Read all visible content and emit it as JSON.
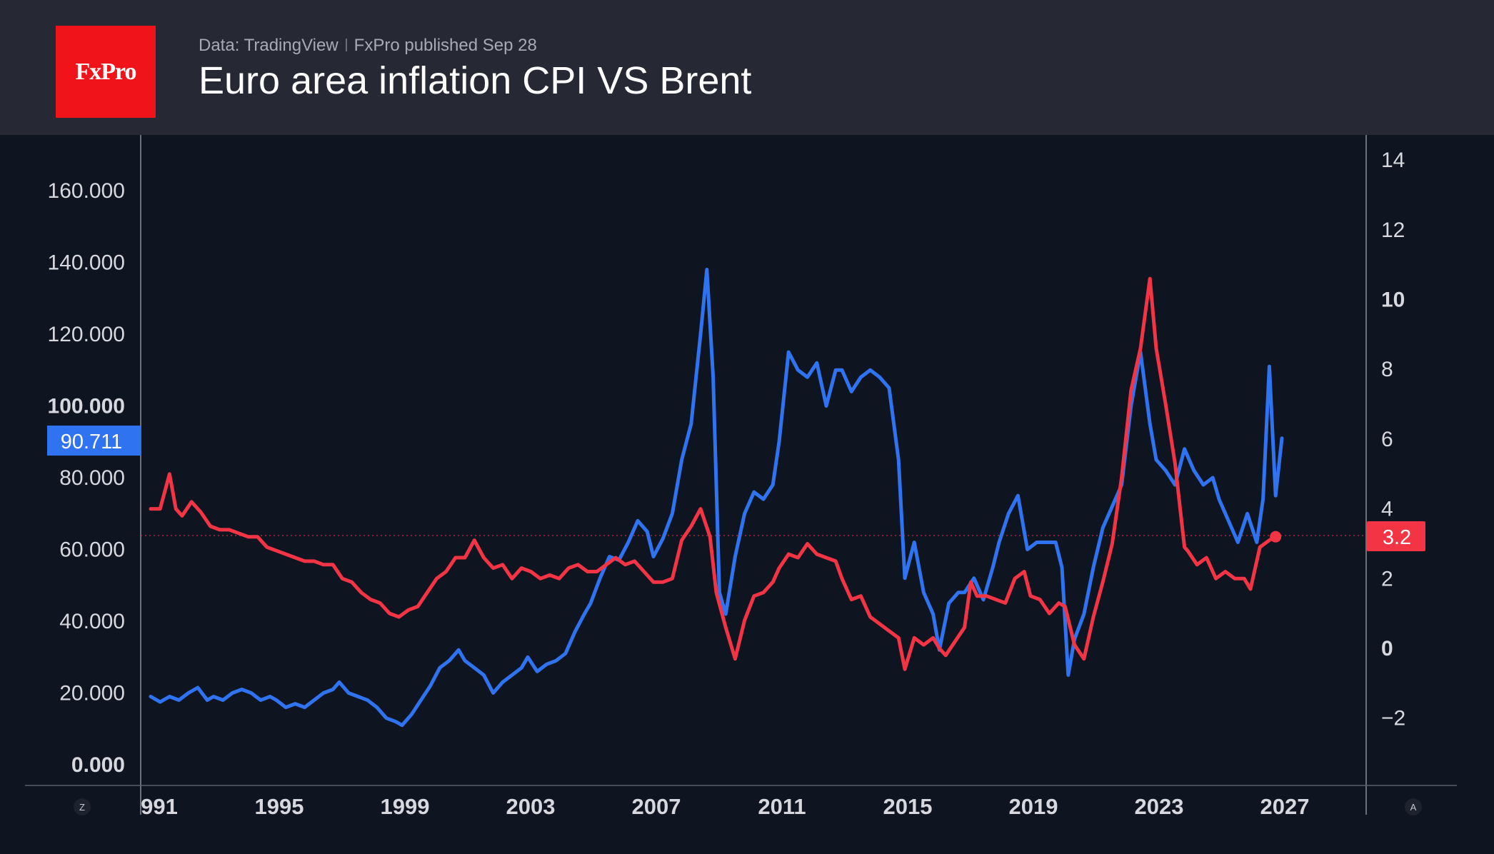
{
  "header": {
    "logo_text": "FxPro",
    "source": "Data: TradingView",
    "published": "FxPro published Sep 28",
    "title": "Euro area inflation CPI VS Brent"
  },
  "corner_buttons": {
    "left": "Z",
    "right": "A"
  },
  "colors": {
    "brent": "#2f73f0",
    "cpi": "#f23445",
    "background": "#0e1420",
    "header": "#262833",
    "logo": "#f0141a"
  },
  "chart_data": {
    "type": "line",
    "title": "Euro area inflation CPI VS Brent",
    "x_ticks": [
      "991",
      "1995",
      "1999",
      "2003",
      "2007",
      "2011",
      "2015",
      "2019",
      "2023",
      "2027"
    ],
    "left_axis": {
      "ticks": [
        "160.000",
        "140.000",
        "120.000",
        "100.000",
        "80.000",
        "60.000",
        "40.000",
        "20.000",
        "0.000"
      ],
      "range": [
        0,
        175
      ]
    },
    "right_axis": {
      "ticks": [
        "14",
        "12",
        "10",
        "8",
        "6",
        "4",
        "2",
        "0",
        "−2"
      ],
      "range": [
        -4.3,
        14.5
      ]
    },
    "series": [
      {
        "axis": "left",
        "last_value_label": "90.711",
        "points": [
          [
            1991.0,
            19
          ],
          [
            1991.3,
            17.5
          ],
          [
            1991.6,
            19
          ],
          [
            1991.9,
            18
          ],
          [
            1992.2,
            20
          ],
          [
            1992.5,
            21.5
          ],
          [
            1992.8,
            18
          ],
          [
            1993.0,
            19
          ],
          [
            1993.3,
            18
          ],
          [
            1993.6,
            20
          ],
          [
            1993.9,
            21
          ],
          [
            1994.2,
            20
          ],
          [
            1994.5,
            18
          ],
          [
            1994.8,
            19
          ],
          [
            1995.0,
            18
          ],
          [
            1995.3,
            16
          ],
          [
            1995.6,
            17
          ],
          [
            1995.9,
            16
          ],
          [
            1996.2,
            18
          ],
          [
            1996.5,
            20
          ],
          [
            1996.8,
            21
          ],
          [
            1997.0,
            23
          ],
          [
            1997.3,
            20
          ],
          [
            1997.6,
            19
          ],
          [
            1997.9,
            18
          ],
          [
            1998.2,
            16
          ],
          [
            1998.5,
            13
          ],
          [
            1998.8,
            12
          ],
          [
            1999.0,
            11
          ],
          [
            1999.3,
            14
          ],
          [
            1999.6,
            18
          ],
          [
            1999.9,
            22
          ],
          [
            2000.2,
            27
          ],
          [
            2000.5,
            29
          ],
          [
            2000.8,
            32
          ],
          [
            2001.0,
            29
          ],
          [
            2001.3,
            27
          ],
          [
            2001.6,
            25
          ],
          [
            2001.9,
            20
          ],
          [
            2002.2,
            23
          ],
          [
            2002.5,
            25
          ],
          [
            2002.8,
            27
          ],
          [
            2003.0,
            30
          ],
          [
            2003.3,
            26
          ],
          [
            2003.6,
            28
          ],
          [
            2003.9,
            29
          ],
          [
            2004.2,
            31
          ],
          [
            2004.5,
            37
          ],
          [
            2004.8,
            42
          ],
          [
            2005.0,
            45
          ],
          [
            2005.3,
            52
          ],
          [
            2005.6,
            58
          ],
          [
            2005.9,
            57
          ],
          [
            2006.2,
            62
          ],
          [
            2006.5,
            68
          ],
          [
            2006.8,
            65
          ],
          [
            2007.0,
            58
          ],
          [
            2007.3,
            63
          ],
          [
            2007.6,
            70
          ],
          [
            2007.9,
            85
          ],
          [
            2008.2,
            95
          ],
          [
            2008.5,
            120
          ],
          [
            2008.7,
            138
          ],
          [
            2008.9,
            108
          ],
          [
            2009.1,
            48
          ],
          [
            2009.3,
            42
          ],
          [
            2009.6,
            58
          ],
          [
            2009.9,
            70
          ],
          [
            2010.2,
            76
          ],
          [
            2010.5,
            74
          ],
          [
            2010.8,
            78
          ],
          [
            2011.0,
            90
          ],
          [
            2011.3,
            115
          ],
          [
            2011.6,
            110
          ],
          [
            2011.9,
            108
          ],
          [
            2012.2,
            112
          ],
          [
            2012.5,
            100
          ],
          [
            2012.8,
            110
          ],
          [
            2013.0,
            110
          ],
          [
            2013.3,
            104
          ],
          [
            2013.6,
            108
          ],
          [
            2013.9,
            110
          ],
          [
            2014.2,
            108
          ],
          [
            2014.5,
            105
          ],
          [
            2014.8,
            85
          ],
          [
            2015.0,
            52
          ],
          [
            2015.3,
            62
          ],
          [
            2015.6,
            48
          ],
          [
            2015.9,
            42
          ],
          [
            2016.1,
            32
          ],
          [
            2016.4,
            45
          ],
          [
            2016.7,
            48
          ],
          [
            2016.9,
            48
          ],
          [
            2017.2,
            52
          ],
          [
            2017.5,
            46
          ],
          [
            2017.8,
            55
          ],
          [
            2018.0,
            62
          ],
          [
            2018.3,
            70
          ],
          [
            2018.6,
            75
          ],
          [
            2018.9,
            60
          ],
          [
            2019.2,
            62
          ],
          [
            2019.5,
            62
          ],
          [
            2019.8,
            62
          ],
          [
            2020.0,
            55
          ],
          [
            2020.2,
            25
          ],
          [
            2020.4,
            35
          ],
          [
            2020.7,
            42
          ],
          [
            2021.0,
            55
          ],
          [
            2021.3,
            66
          ],
          [
            2021.6,
            72
          ],
          [
            2021.9,
            78
          ],
          [
            2022.2,
            100
          ],
          [
            2022.5,
            115
          ],
          [
            2022.8,
            95
          ],
          [
            2023.0,
            85
          ],
          [
            2023.3,
            82
          ],
          [
            2023.6,
            78
          ],
          [
            2023.9,
            88
          ],
          [
            2024.2,
            82
          ],
          [
            2024.5,
            78
          ],
          [
            2024.8,
            80
          ],
          [
            2025.0,
            74
          ],
          [
            2025.3,
            68
          ],
          [
            2025.6,
            62
          ],
          [
            2025.9,
            70
          ],
          [
            2026.2,
            62
          ],
          [
            2026.4,
            74
          ],
          [
            2026.6,
            111
          ],
          [
            2026.8,
            75
          ],
          [
            2027.0,
            91
          ]
        ]
      },
      {
        "axis": "right",
        "last_value_label": "3.2",
        "points": [
          [
            1991.0,
            4.0
          ],
          [
            1991.3,
            4.0
          ],
          [
            1991.6,
            5.0
          ],
          [
            1991.8,
            4.0
          ],
          [
            1992.0,
            3.8
          ],
          [
            1992.3,
            4.2
          ],
          [
            1992.6,
            3.9
          ],
          [
            1992.9,
            3.5
          ],
          [
            1993.2,
            3.4
          ],
          [
            1993.5,
            3.4
          ],
          [
            1993.8,
            3.3
          ],
          [
            1994.1,
            3.2
          ],
          [
            1994.4,
            3.2
          ],
          [
            1994.7,
            2.9
          ],
          [
            1995.0,
            2.8
          ],
          [
            1995.3,
            2.7
          ],
          [
            1995.6,
            2.6
          ],
          [
            1995.9,
            2.5
          ],
          [
            1996.2,
            2.5
          ],
          [
            1996.5,
            2.4
          ],
          [
            1996.8,
            2.4
          ],
          [
            1997.1,
            2.0
          ],
          [
            1997.4,
            1.9
          ],
          [
            1997.7,
            1.6
          ],
          [
            1998.0,
            1.4
          ],
          [
            1998.3,
            1.3
          ],
          [
            1998.6,
            1.0
          ],
          [
            1998.9,
            0.9
          ],
          [
            1999.2,
            1.1
          ],
          [
            1999.5,
            1.2
          ],
          [
            1999.8,
            1.6
          ],
          [
            2000.1,
            2.0
          ],
          [
            2000.4,
            2.2
          ],
          [
            2000.7,
            2.6
          ],
          [
            2001.0,
            2.6
          ],
          [
            2001.3,
            3.1
          ],
          [
            2001.6,
            2.6
          ],
          [
            2001.9,
            2.3
          ],
          [
            2002.2,
            2.4
          ],
          [
            2002.5,
            2.0
          ],
          [
            2002.8,
            2.3
          ],
          [
            2003.1,
            2.2
          ],
          [
            2003.4,
            2.0
          ],
          [
            2003.7,
            2.1
          ],
          [
            2004.0,
            2.0
          ],
          [
            2004.3,
            2.3
          ],
          [
            2004.6,
            2.4
          ],
          [
            2004.9,
            2.2
          ],
          [
            2005.2,
            2.2
          ],
          [
            2005.5,
            2.4
          ],
          [
            2005.8,
            2.6
          ],
          [
            2006.1,
            2.4
          ],
          [
            2006.4,
            2.5
          ],
          [
            2006.7,
            2.2
          ],
          [
            2007.0,
            1.9
          ],
          [
            2007.3,
            1.9
          ],
          [
            2007.6,
            2.0
          ],
          [
            2007.9,
            3.1
          ],
          [
            2008.2,
            3.5
          ],
          [
            2008.5,
            4.0
          ],
          [
            2008.8,
            3.2
          ],
          [
            2009.0,
            1.6
          ],
          [
            2009.3,
            0.6
          ],
          [
            2009.6,
            -0.3
          ],
          [
            2009.9,
            0.8
          ],
          [
            2010.2,
            1.5
          ],
          [
            2010.5,
            1.6
          ],
          [
            2010.8,
            1.9
          ],
          [
            2011.0,
            2.3
          ],
          [
            2011.3,
            2.7
          ],
          [
            2011.6,
            2.6
          ],
          [
            2011.9,
            3.0
          ],
          [
            2012.2,
            2.7
          ],
          [
            2012.5,
            2.6
          ],
          [
            2012.8,
            2.5
          ],
          [
            2013.0,
            2.0
          ],
          [
            2013.3,
            1.4
          ],
          [
            2013.6,
            1.5
          ],
          [
            2013.9,
            0.9
          ],
          [
            2014.2,
            0.7
          ],
          [
            2014.5,
            0.5
          ],
          [
            2014.8,
            0.3
          ],
          [
            2015.0,
            -0.6
          ],
          [
            2015.3,
            0.3
          ],
          [
            2015.6,
            0.1
          ],
          [
            2015.9,
            0.3
          ],
          [
            2016.1,
            0.0
          ],
          [
            2016.3,
            -0.2
          ],
          [
            2016.6,
            0.2
          ],
          [
            2016.9,
            0.6
          ],
          [
            2017.1,
            1.9
          ],
          [
            2017.3,
            1.5
          ],
          [
            2017.6,
            1.5
          ],
          [
            2017.9,
            1.4
          ],
          [
            2018.2,
            1.3
          ],
          [
            2018.5,
            2.0
          ],
          [
            2018.8,
            2.2
          ],
          [
            2019.0,
            1.5
          ],
          [
            2019.3,
            1.4
          ],
          [
            2019.6,
            1.0
          ],
          [
            2019.9,
            1.3
          ],
          [
            2020.1,
            1.2
          ],
          [
            2020.4,
            0.1
          ],
          [
            2020.7,
            -0.3
          ],
          [
            2021.0,
            0.9
          ],
          [
            2021.3,
            1.9
          ],
          [
            2021.6,
            3.0
          ],
          [
            2021.9,
            4.9
          ],
          [
            2022.2,
            7.4
          ],
          [
            2022.5,
            8.6
          ],
          [
            2022.8,
            10.6
          ],
          [
            2023.0,
            8.6
          ],
          [
            2023.3,
            7.0
          ],
          [
            2023.6,
            5.3
          ],
          [
            2023.9,
            2.9
          ],
          [
            2024.0,
            2.8
          ],
          [
            2024.3,
            2.4
          ],
          [
            2024.6,
            2.6
          ],
          [
            2024.9,
            2.0
          ],
          [
            2025.2,
            2.2
          ],
          [
            2025.5,
            2.0
          ],
          [
            2025.8,
            2.0
          ],
          [
            2026.0,
            1.7
          ],
          [
            2026.3,
            2.9
          ],
          [
            2026.6,
            3.1
          ],
          [
            2026.8,
            3.2
          ]
        ]
      }
    ]
  }
}
